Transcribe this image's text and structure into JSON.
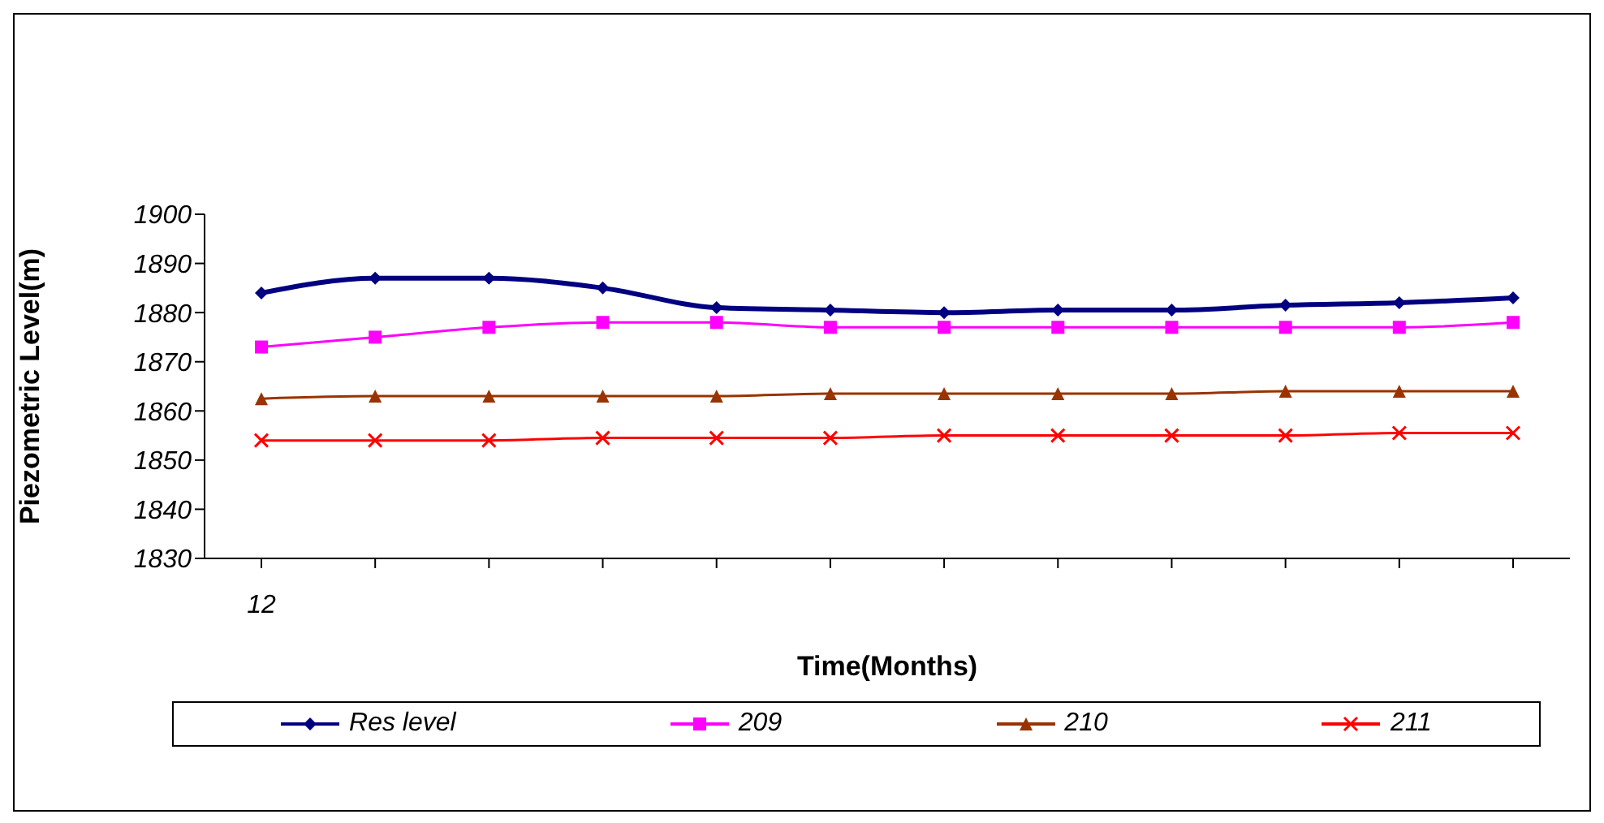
{
  "chart_data": {
    "type": "line",
    "xlabel": "Time(Months)",
    "ylabel": "Piezometric Level(m)",
    "categories": [
      "12",
      null,
      null,
      null,
      null,
      null,
      null,
      null,
      null,
      null,
      null,
      null
    ],
    "series": [
      {
        "name": "Res  level",
        "color": "#000080",
        "marker": "diamond",
        "values": [
          1884,
          1887,
          1887,
          1885,
          1881,
          1880.5,
          1880,
          1880.5,
          1880.5,
          1881.5,
          1882,
          1883
        ]
      },
      {
        "name": "209",
        "color": "#ff00ff",
        "marker": "square",
        "values": [
          1873,
          1875,
          1877,
          1878,
          1878,
          1877,
          1877,
          1877,
          1877,
          1877,
          1877,
          1878
        ]
      },
      {
        "name": "210",
        "color": "#993300",
        "marker": "triangle",
        "values": [
          1862.5,
          1863,
          1863,
          1863,
          1863,
          1863.5,
          1863.5,
          1863.5,
          1863.5,
          1864,
          1864,
          1864
        ]
      },
      {
        "name": "211",
        "color": "#ff0000",
        "marker": "cross",
        "values": [
          1854,
          1854,
          1854,
          1854.5,
          1854.5,
          1854.5,
          1855,
          1855,
          1855,
          1855,
          1855.5,
          1855.5
        ]
      }
    ],
    "ylim": [
      1830,
      1900
    ],
    "yticks": [
      1830,
      1840,
      1850,
      1860,
      1870,
      1880,
      1890,
      1900
    ],
    "grid": false,
    "legend": "bottom",
    "line_style": "solid"
  }
}
